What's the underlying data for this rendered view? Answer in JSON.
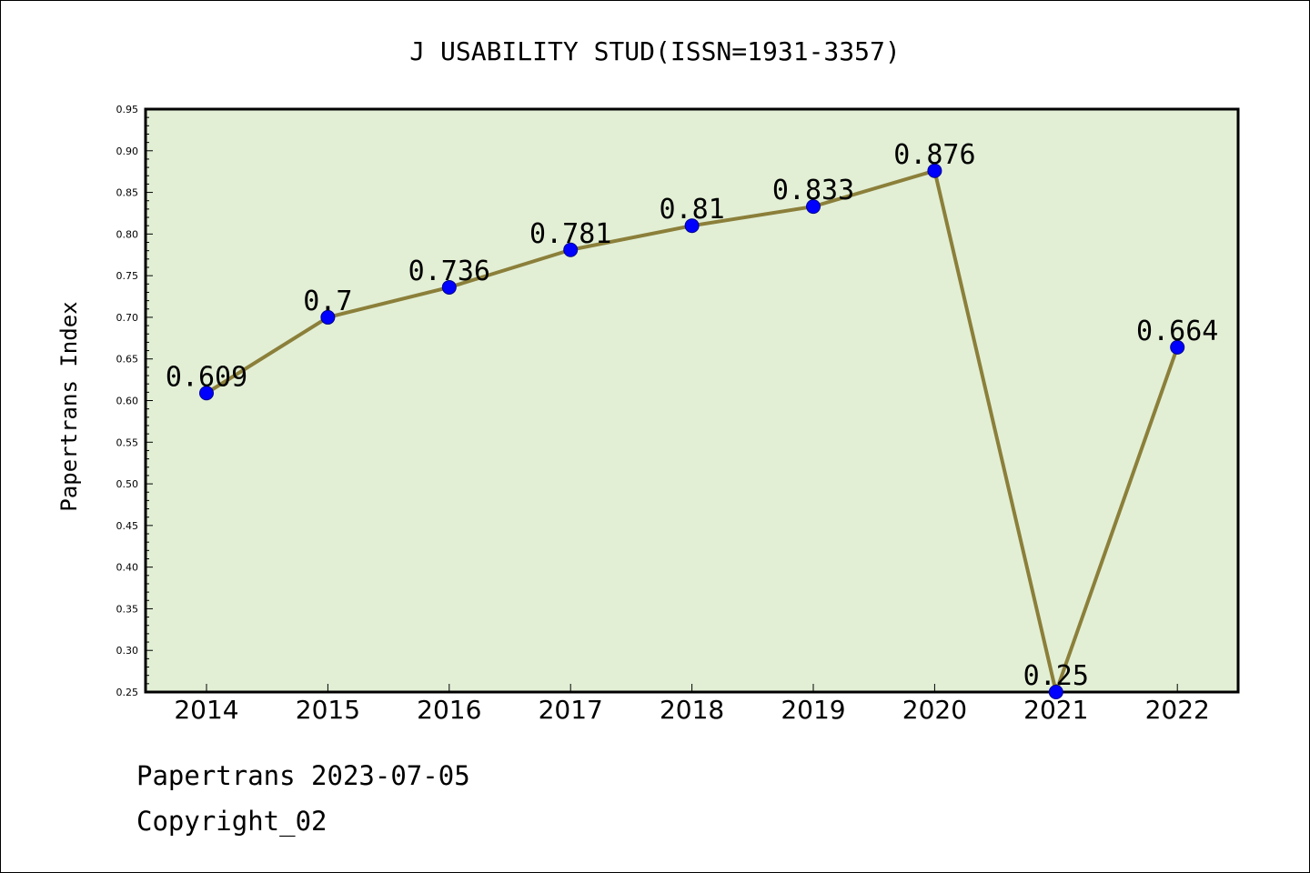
{
  "chart_data": {
    "type": "line",
    "title": "J USABILITY STUD(ISSN=1931-3357)",
    "xlabel": "",
    "ylabel": "Papertrans Index",
    "categories": [
      "2014",
      "2015",
      "2016",
      "2017",
      "2018",
      "2019",
      "2020",
      "2021",
      "2022"
    ],
    "series": [
      {
        "values": [
          0.609,
          0.7,
          0.736,
          0.781,
          0.81,
          0.833,
          0.876,
          0.25,
          0.664
        ],
        "data_labels": [
          "0.609",
          "0.7",
          "0.736",
          "0.781",
          "0.81",
          "0.833",
          "0.876",
          "0.25",
          "0.664"
        ]
      }
    ],
    "ylim": [
      0.25,
      0.95
    ],
    "yticks": [
      "0.25",
      "0.30",
      "0.35",
      "0.40",
      "0.45",
      "0.50",
      "0.55",
      "0.60",
      "0.65",
      "0.70",
      "0.75",
      "0.80",
      "0.85",
      "0.90",
      "0.95"
    ],
    "grid": false,
    "legend": "none",
    "colors": {
      "plot_background": "#e2efd5",
      "line": "#8b7f3a",
      "marker": "#0000ff",
      "axis": "#000000"
    }
  },
  "footer": {
    "line1": "Papertrans 2023-07-05",
    "line2": "Copyright_02"
  }
}
